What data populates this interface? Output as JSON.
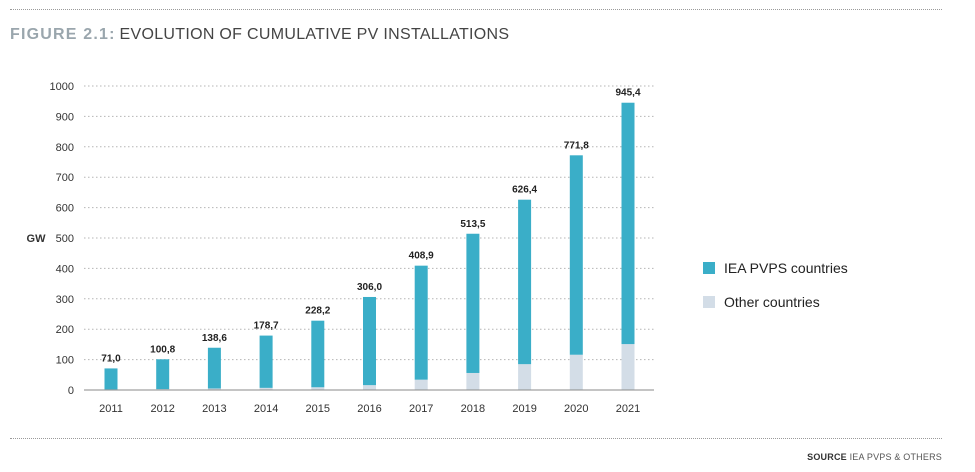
{
  "figure": {
    "label": "FIGURE 2.1",
    "separator": ":",
    "title": "EVOLUTION OF CUMULATIVE PV INSTALLATIONS"
  },
  "source": {
    "label": "SOURCE",
    "text": "IEA PVPS & OTHERS"
  },
  "colors": {
    "iea": "#3aaec8",
    "other": "#d3dde7"
  },
  "chart_data": {
    "type": "bar",
    "stacked": true,
    "ylabel": "GW",
    "xlabel": "",
    "ylim": [
      0,
      1000
    ],
    "yticks": [
      0,
      100,
      200,
      300,
      400,
      500,
      600,
      700,
      800,
      900,
      1000
    ],
    "grid": "horizontal dotted",
    "legend_position": "right",
    "categories": [
      "2011",
      "2012",
      "2013",
      "2014",
      "2015",
      "2016",
      "2017",
      "2018",
      "2019",
      "2020",
      "2021"
    ],
    "totals": [
      71.0,
      100.8,
      138.6,
      178.7,
      228.2,
      306.0,
      408.9,
      513.5,
      626.4,
      771.8,
      945.4
    ],
    "total_labels": [
      "71,0",
      "100,8",
      "138,6",
      "178,7",
      "228,2",
      "306,0",
      "408,9",
      "513,5",
      "626,4",
      "771,8",
      "945,4"
    ],
    "series": [
      {
        "name": "IEA PVPS countries",
        "color": "#3aaec8",
        "values": [
          69,
          98,
          134,
          172,
          219,
          290,
          375,
          458,
          541,
          656,
          794
        ]
      },
      {
        "name": "Other countries",
        "color": "#d3dde7",
        "values": [
          2,
          3,
          5,
          7,
          9,
          16,
          34,
          56,
          85,
          116,
          151
        ]
      }
    ]
  }
}
